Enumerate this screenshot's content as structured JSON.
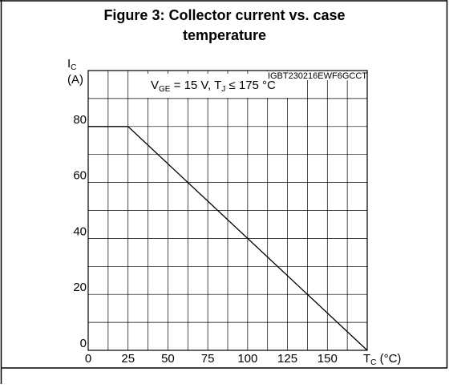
{
  "chart_data": {
    "type": "line",
    "title": [
      "Figure 3: Collector current vs. case",
      "temperature"
    ],
    "code": "IGBT230216EWF6GCCT",
    "condition": [
      "V",
      "GE",
      " = 15 V, T",
      "J",
      " ≤ 175 °C"
    ],
    "ylabel": [
      "I",
      "C"
    ],
    "ylabel_unit": "(A)",
    "xlabel": [
      "T",
      "C",
      " (°C)"
    ],
    "x": [
      0,
      25,
      175
    ],
    "series": [
      {
        "color": "#000000",
        "values": [
          80,
          80,
          0
        ]
      }
    ],
    "xlim": [
      0,
      175
    ],
    "ylim": [
      0,
      100
    ],
    "xticks": [
      0,
      25,
      50,
      75,
      100,
      125,
      150
    ],
    "yticks": [
      0,
      20,
      40,
      60,
      80
    ],
    "xgrid": [
      12.5,
      25,
      37.5,
      50,
      62.5,
      75,
      87.5,
      100,
      112.5,
      125,
      137.5,
      150,
      162.5
    ],
    "ygrid": [
      10,
      20,
      30,
      40,
      50,
      60,
      70,
      80,
      90
    ],
    "grid": true
  }
}
